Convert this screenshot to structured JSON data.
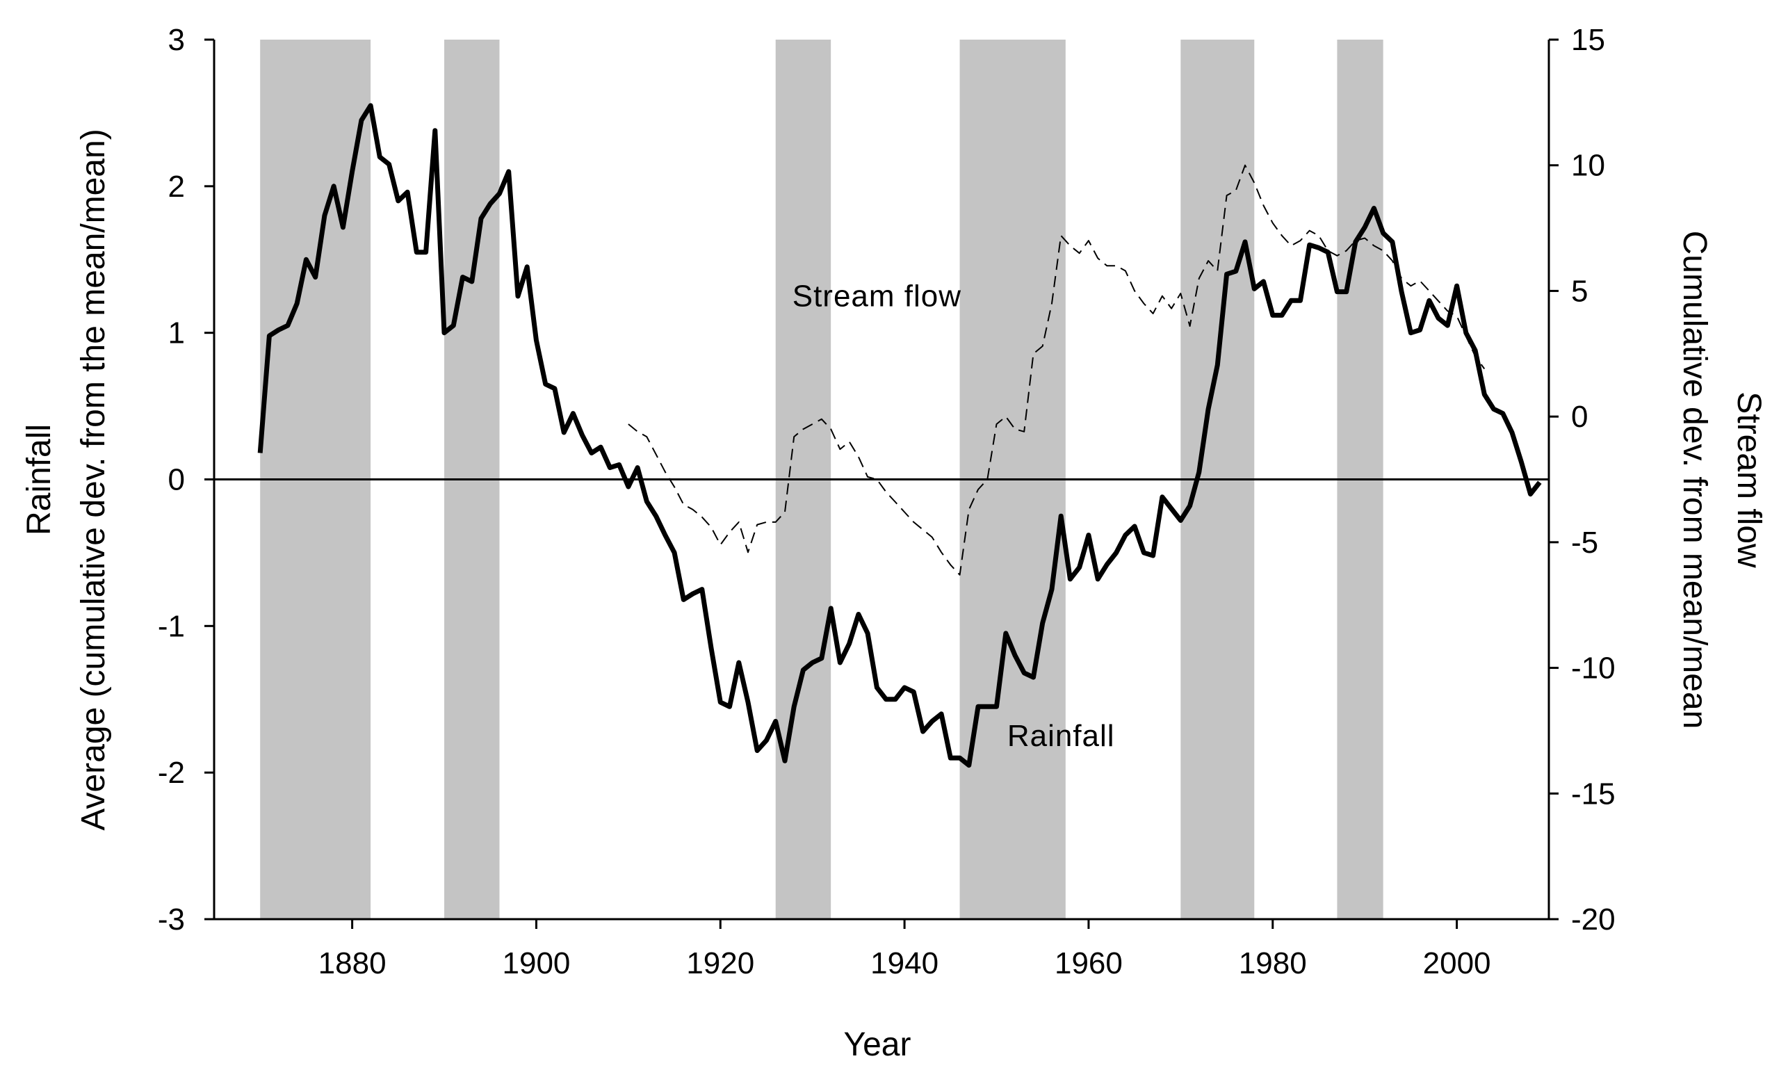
{
  "chart_data": {
    "type": "line",
    "xlabel": "Year",
    "ylabel_left": [
      "Rainfall",
      "Average (cumulative dev. from the mean/mean)"
    ],
    "ylabel_right": [
      "Stream flow",
      "Cumulative dev. from mean/mean"
    ],
    "xlim": [
      1865,
      2010
    ],
    "ylim_left": [
      -3,
      3
    ],
    "ylim_right": [
      -20,
      15
    ],
    "x_ticks": [
      1880,
      1900,
      1920,
      1940,
      1960,
      1980,
      2000
    ],
    "y_ticks_left": [
      -3,
      -2,
      -1,
      0,
      1,
      2,
      3
    ],
    "y_ticks_right": [
      -20,
      -15,
      -10,
      -5,
      0,
      5,
      10,
      15
    ],
    "zero_line": 0,
    "grid": false,
    "shaded_periods": [
      [
        1870,
        1882
      ],
      [
        1890,
        1896
      ],
      [
        1926,
        1932
      ],
      [
        1946,
        1957.5
      ],
      [
        1970,
        1978
      ],
      [
        1987,
        1992
      ]
    ],
    "annotations": [
      {
        "text": "Stream flow",
        "x": 1937,
        "y": 1.18
      },
      {
        "text": "Rainfall",
        "x": 1957,
        "y": -1.82
      }
    ],
    "series": [
      {
        "name": "Rainfall",
        "axis": "left",
        "style": "solid",
        "points": [
          [
            1870,
            0.18
          ],
          [
            1871,
            0.98
          ],
          [
            1872,
            1.02
          ],
          [
            1873,
            1.05
          ],
          [
            1874,
            1.2
          ],
          [
            1875,
            1.5
          ],
          [
            1876,
            1.38
          ],
          [
            1877,
            1.8
          ],
          [
            1878,
            2.0
          ],
          [
            1879,
            1.72
          ],
          [
            1880,
            2.1
          ],
          [
            1881,
            2.45
          ],
          [
            1882,
            2.55
          ],
          [
            1883,
            2.2
          ],
          [
            1884,
            2.15
          ],
          [
            1885,
            1.9
          ],
          [
            1886,
            1.96
          ],
          [
            1887,
            1.55
          ],
          [
            1888,
            1.55
          ],
          [
            1889,
            2.38
          ],
          [
            1890,
            1.0
          ],
          [
            1891,
            1.05
          ],
          [
            1892,
            1.38
          ],
          [
            1893,
            1.35
          ],
          [
            1894,
            1.78
          ],
          [
            1895,
            1.88
          ],
          [
            1896,
            1.95
          ],
          [
            1897,
            2.1
          ],
          [
            1898,
            1.25
          ],
          [
            1899,
            1.45
          ],
          [
            1900,
            0.95
          ],
          [
            1901,
            0.65
          ],
          [
            1902,
            0.62
          ],
          [
            1903,
            0.32
          ],
          [
            1904,
            0.45
          ],
          [
            1905,
            0.3
          ],
          [
            1906,
            0.18
          ],
          [
            1907,
            0.22
          ],
          [
            1908,
            0.08
          ],
          [
            1909,
            0.1
          ],
          [
            1910,
            -0.05
          ],
          [
            1911,
            0.08
          ],
          [
            1912,
            -0.15
          ],
          [
            1913,
            -0.25
          ],
          [
            1914,
            -0.38
          ],
          [
            1915,
            -0.5
          ],
          [
            1916,
            -0.82
          ],
          [
            1917,
            -0.78
          ],
          [
            1918,
            -0.75
          ],
          [
            1919,
            -1.15
          ],
          [
            1920,
            -1.52
          ],
          [
            1921,
            -1.55
          ],
          [
            1922,
            -1.25
          ],
          [
            1923,
            -1.52
          ],
          [
            1924,
            -1.85
          ],
          [
            1925,
            -1.78
          ],
          [
            1926,
            -1.65
          ],
          [
            1927,
            -1.92
          ],
          [
            1928,
            -1.55
          ],
          [
            1929,
            -1.3
          ],
          [
            1930,
            -1.25
          ],
          [
            1931,
            -1.22
          ],
          [
            1932,
            -0.88
          ],
          [
            1933,
            -1.25
          ],
          [
            1934,
            -1.12
          ],
          [
            1935,
            -0.92
          ],
          [
            1936,
            -1.05
          ],
          [
            1937,
            -1.42
          ],
          [
            1938,
            -1.5
          ],
          [
            1939,
            -1.5
          ],
          [
            1940,
            -1.42
          ],
          [
            1941,
            -1.45
          ],
          [
            1942,
            -1.72
          ],
          [
            1943,
            -1.65
          ],
          [
            1944,
            -1.6
          ],
          [
            1945,
            -1.9
          ],
          [
            1946,
            -1.9
          ],
          [
            1947,
            -1.95
          ],
          [
            1948,
            -1.55
          ],
          [
            1949,
            -1.55
          ],
          [
            1950,
            -1.55
          ],
          [
            1951,
            -1.05
          ],
          [
            1952,
            -1.2
          ],
          [
            1953,
            -1.32
          ],
          [
            1954,
            -1.35
          ],
          [
            1955,
            -0.98
          ],
          [
            1956,
            -0.75
          ],
          [
            1957,
            -0.25
          ],
          [
            1958,
            -0.68
          ],
          [
            1959,
            -0.6
          ],
          [
            1960,
            -0.38
          ],
          [
            1961,
            -0.68
          ],
          [
            1962,
            -0.58
          ],
          [
            1963,
            -0.5
          ],
          [
            1964,
            -0.38
          ],
          [
            1965,
            -0.32
          ],
          [
            1966,
            -0.5
          ],
          [
            1967,
            -0.52
          ],
          [
            1968,
            -0.12
          ],
          [
            1969,
            -0.2
          ],
          [
            1970,
            -0.28
          ],
          [
            1971,
            -0.18
          ],
          [
            1972,
            0.05
          ],
          [
            1973,
            0.48
          ],
          [
            1974,
            0.78
          ],
          [
            1975,
            1.4
          ],
          [
            1976,
            1.42
          ],
          [
            1977,
            1.62
          ],
          [
            1978,
            1.3
          ],
          [
            1979,
            1.35
          ],
          [
            1980,
            1.12
          ],
          [
            1981,
            1.12
          ],
          [
            1982,
            1.22
          ],
          [
            1983,
            1.22
          ],
          [
            1984,
            1.6
          ],
          [
            1985,
            1.58
          ],
          [
            1986,
            1.55
          ],
          [
            1987,
            1.28
          ],
          [
            1988,
            1.28
          ],
          [
            1989,
            1.62
          ],
          [
            1990,
            1.72
          ],
          [
            1991,
            1.85
          ],
          [
            1992,
            1.68
          ],
          [
            1993,
            1.62
          ],
          [
            1994,
            1.28
          ],
          [
            1995,
            1.0
          ],
          [
            1996,
            1.02
          ],
          [
            1997,
            1.22
          ],
          [
            1998,
            1.1
          ],
          [
            1999,
            1.05
          ],
          [
            2000,
            1.32
          ],
          [
            2001,
            1.0
          ],
          [
            2002,
            0.88
          ],
          [
            2003,
            0.58
          ],
          [
            2004,
            0.48
          ],
          [
            2005,
            0.45
          ],
          [
            2006,
            0.32
          ],
          [
            2007,
            0.12
          ],
          [
            2008,
            -0.1
          ],
          [
            2009,
            -0.02
          ]
        ]
      },
      {
        "name": "Stream flow",
        "axis": "right",
        "style": "dashed",
        "points": [
          [
            1910,
            -0.3
          ],
          [
            1911,
            -0.6
          ],
          [
            1912,
            -0.8
          ],
          [
            1913,
            -1.5
          ],
          [
            1914,
            -2.2
          ],
          [
            1915,
            -2.8
          ],
          [
            1916,
            -3.5
          ],
          [
            1917,
            -3.7
          ],
          [
            1918,
            -4.0
          ],
          [
            1919,
            -4.4
          ],
          [
            1920,
            -5.1
          ],
          [
            1921,
            -4.6
          ],
          [
            1922,
            -4.2
          ],
          [
            1923,
            -5.4
          ],
          [
            1924,
            -4.3
          ],
          [
            1925,
            -4.2
          ],
          [
            1926,
            -4.2
          ],
          [
            1927,
            -3.8
          ],
          [
            1928,
            -0.8
          ],
          [
            1929,
            -0.5
          ],
          [
            1930,
            -0.3
          ],
          [
            1931,
            -0.1
          ],
          [
            1932,
            -0.5
          ],
          [
            1933,
            -1.3
          ],
          [
            1934,
            -1.0
          ],
          [
            1935,
            -1.6
          ],
          [
            1936,
            -2.4
          ],
          [
            1937,
            -2.5
          ],
          [
            1938,
            -3.0
          ],
          [
            1939,
            -3.4
          ],
          [
            1940,
            -3.8
          ],
          [
            1941,
            -4.2
          ],
          [
            1942,
            -4.5
          ],
          [
            1943,
            -4.8
          ],
          [
            1944,
            -5.4
          ],
          [
            1945,
            -5.9
          ],
          [
            1946,
            -6.3
          ],
          [
            1947,
            -3.7
          ],
          [
            1948,
            -2.9
          ],
          [
            1949,
            -2.5
          ],
          [
            1950,
            -0.3
          ],
          [
            1951,
            0.0
          ],
          [
            1952,
            -0.5
          ],
          [
            1953,
            -0.6
          ],
          [
            1954,
            2.5
          ],
          [
            1955,
            2.8
          ],
          [
            1956,
            4.5
          ],
          [
            1957,
            7.2
          ],
          [
            1958,
            6.8
          ],
          [
            1959,
            6.5
          ],
          [
            1960,
            7.0
          ],
          [
            1961,
            6.3
          ],
          [
            1962,
            6.0
          ],
          [
            1963,
            6.0
          ],
          [
            1964,
            5.8
          ],
          [
            1965,
            5.0
          ],
          [
            1966,
            4.5
          ],
          [
            1967,
            4.1
          ],
          [
            1968,
            4.8
          ],
          [
            1969,
            4.3
          ],
          [
            1970,
            4.9
          ],
          [
            1971,
            3.6
          ],
          [
            1972,
            5.5
          ],
          [
            1973,
            6.2
          ],
          [
            1974,
            5.8
          ],
          [
            1975,
            8.8
          ],
          [
            1976,
            9.0
          ],
          [
            1977,
            10.0
          ],
          [
            1978,
            9.3
          ],
          [
            1979,
            8.4
          ],
          [
            1980,
            7.7
          ],
          [
            1981,
            7.2
          ],
          [
            1982,
            6.8
          ],
          [
            1983,
            7.0
          ],
          [
            1984,
            7.4
          ],
          [
            1985,
            7.2
          ],
          [
            1986,
            6.6
          ],
          [
            1987,
            6.4
          ],
          [
            1988,
            6.6
          ],
          [
            1989,
            7.0
          ],
          [
            1990,
            7.1
          ],
          [
            1991,
            6.8
          ],
          [
            1992,
            6.6
          ],
          [
            1993,
            6.2
          ],
          [
            1994,
            5.5
          ],
          [
            1995,
            5.2
          ],
          [
            1996,
            5.4
          ],
          [
            1997,
            5.0
          ],
          [
            1998,
            4.6
          ],
          [
            1999,
            4.2
          ],
          [
            2000,
            4.0
          ],
          [
            2001,
            3.2
          ],
          [
            2002,
            2.4
          ],
          [
            2003,
            1.9
          ]
        ]
      }
    ]
  }
}
